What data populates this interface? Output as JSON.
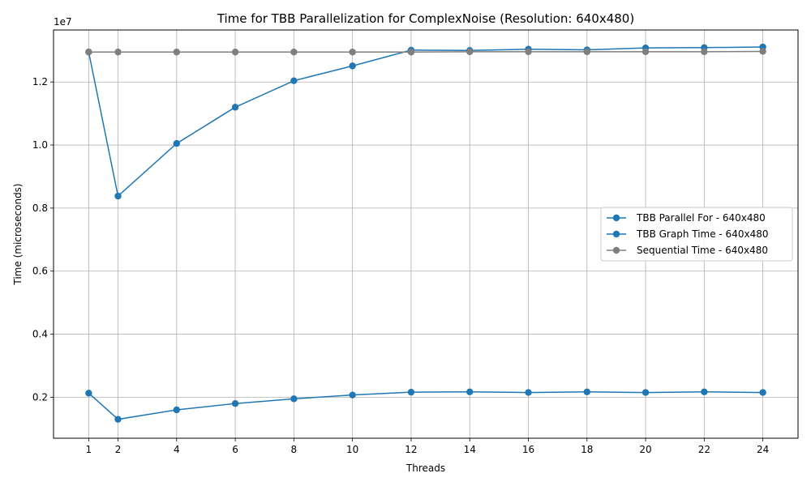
{
  "chart_data": {
    "type": "line",
    "title": "Time for TBB Parallelization for ComplexNoise (Resolution: 640x480)",
    "xlabel": "Threads",
    "ylabel": "Time (microseconds)",
    "y_offset_label": "1e7",
    "y_scale": 10000000,
    "x": [
      1,
      2,
      4,
      6,
      8,
      10,
      12,
      14,
      16,
      18,
      20,
      22,
      24
    ],
    "x_ticks": [
      "1",
      "2",
      "4",
      "6",
      "8",
      "10",
      "12",
      "14",
      "16",
      "18",
      "20",
      "22",
      "24"
    ],
    "y_ticks": [
      0.2,
      0.4,
      0.6,
      0.8,
      1.0,
      1.2
    ],
    "y_tick_labels": [
      "0.2",
      "0.4",
      "0.6",
      "0.8",
      "1.0",
      "1.2"
    ],
    "xlim": [
      -0.2,
      25.2
    ],
    "ylim": [
      0.07,
      1.365
    ],
    "grid": true,
    "legend_position": "center-right",
    "series": [
      {
        "name": "TBB Parallel For - 640x480",
        "color": "#1f77b4",
        "values": [
          12950000,
          8380000,
          10050000,
          11200000,
          12040000,
          12510000,
          13010000,
          13000000,
          13040000,
          13020000,
          13080000,
          13090000,
          13110000
        ]
      },
      {
        "name": "TBB Graph Time - 640x480",
        "color": "#1f77b4",
        "values": [
          2130000,
          1300000,
          1600000,
          1800000,
          1950000,
          2070000,
          2160000,
          2170000,
          2150000,
          2170000,
          2150000,
          2170000,
          2150000
        ]
      },
      {
        "name": "Sequential Time - 640x480",
        "color": "#7f7f7f",
        "values": [
          12950000,
          12950000,
          12950000,
          12950000,
          12950000,
          12950000,
          12950000,
          12960000,
          12960000,
          12960000,
          12960000,
          12960000,
          12970000
        ]
      }
    ]
  }
}
